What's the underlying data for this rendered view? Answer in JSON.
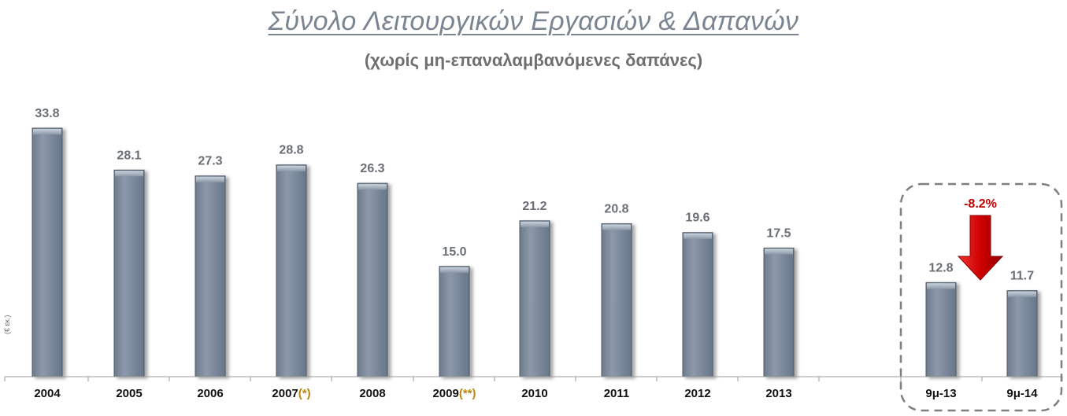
{
  "chart_data": {
    "type": "bar",
    "title": "Σύνολο Λειτουργικών Εργασιών & Δαπανών",
    "subtitle": "(χωρίς μη-επαναλαμβανόμενες δαπάνες)",
    "ylabel": "(€ εκ.)",
    "ylim": [
      0,
      36
    ],
    "categories": [
      "2004",
      "2005",
      "2006",
      "2007",
      "2008",
      "2009",
      "2010",
      "2011",
      "2012",
      "2013",
      "9μ-13",
      "9μ-14"
    ],
    "annotations_on_categories": {
      "3": "(*)",
      "5": "(**)"
    },
    "values": [
      33.8,
      28.1,
      27.3,
      28.8,
      26.3,
      15.0,
      21.2,
      20.8,
      19.6,
      17.5,
      12.8,
      11.7
    ],
    "value_labels": [
      "33.8",
      "28.1",
      "27.3",
      "28.8",
      "26.3",
      "15.0",
      "21.2",
      "20.8",
      "19.6",
      "17.5",
      "12.8",
      "11.7"
    ],
    "highlight": {
      "categories": [
        "9μ-13",
        "9μ-14"
      ],
      "change_label": "-8.2%"
    },
    "colors": {
      "bar": "#7f8ea0",
      "bar_dark": "#5c6878",
      "change": "#c00000",
      "annotation": "#b8860b"
    },
    "grid": false,
    "legend": "none"
  }
}
